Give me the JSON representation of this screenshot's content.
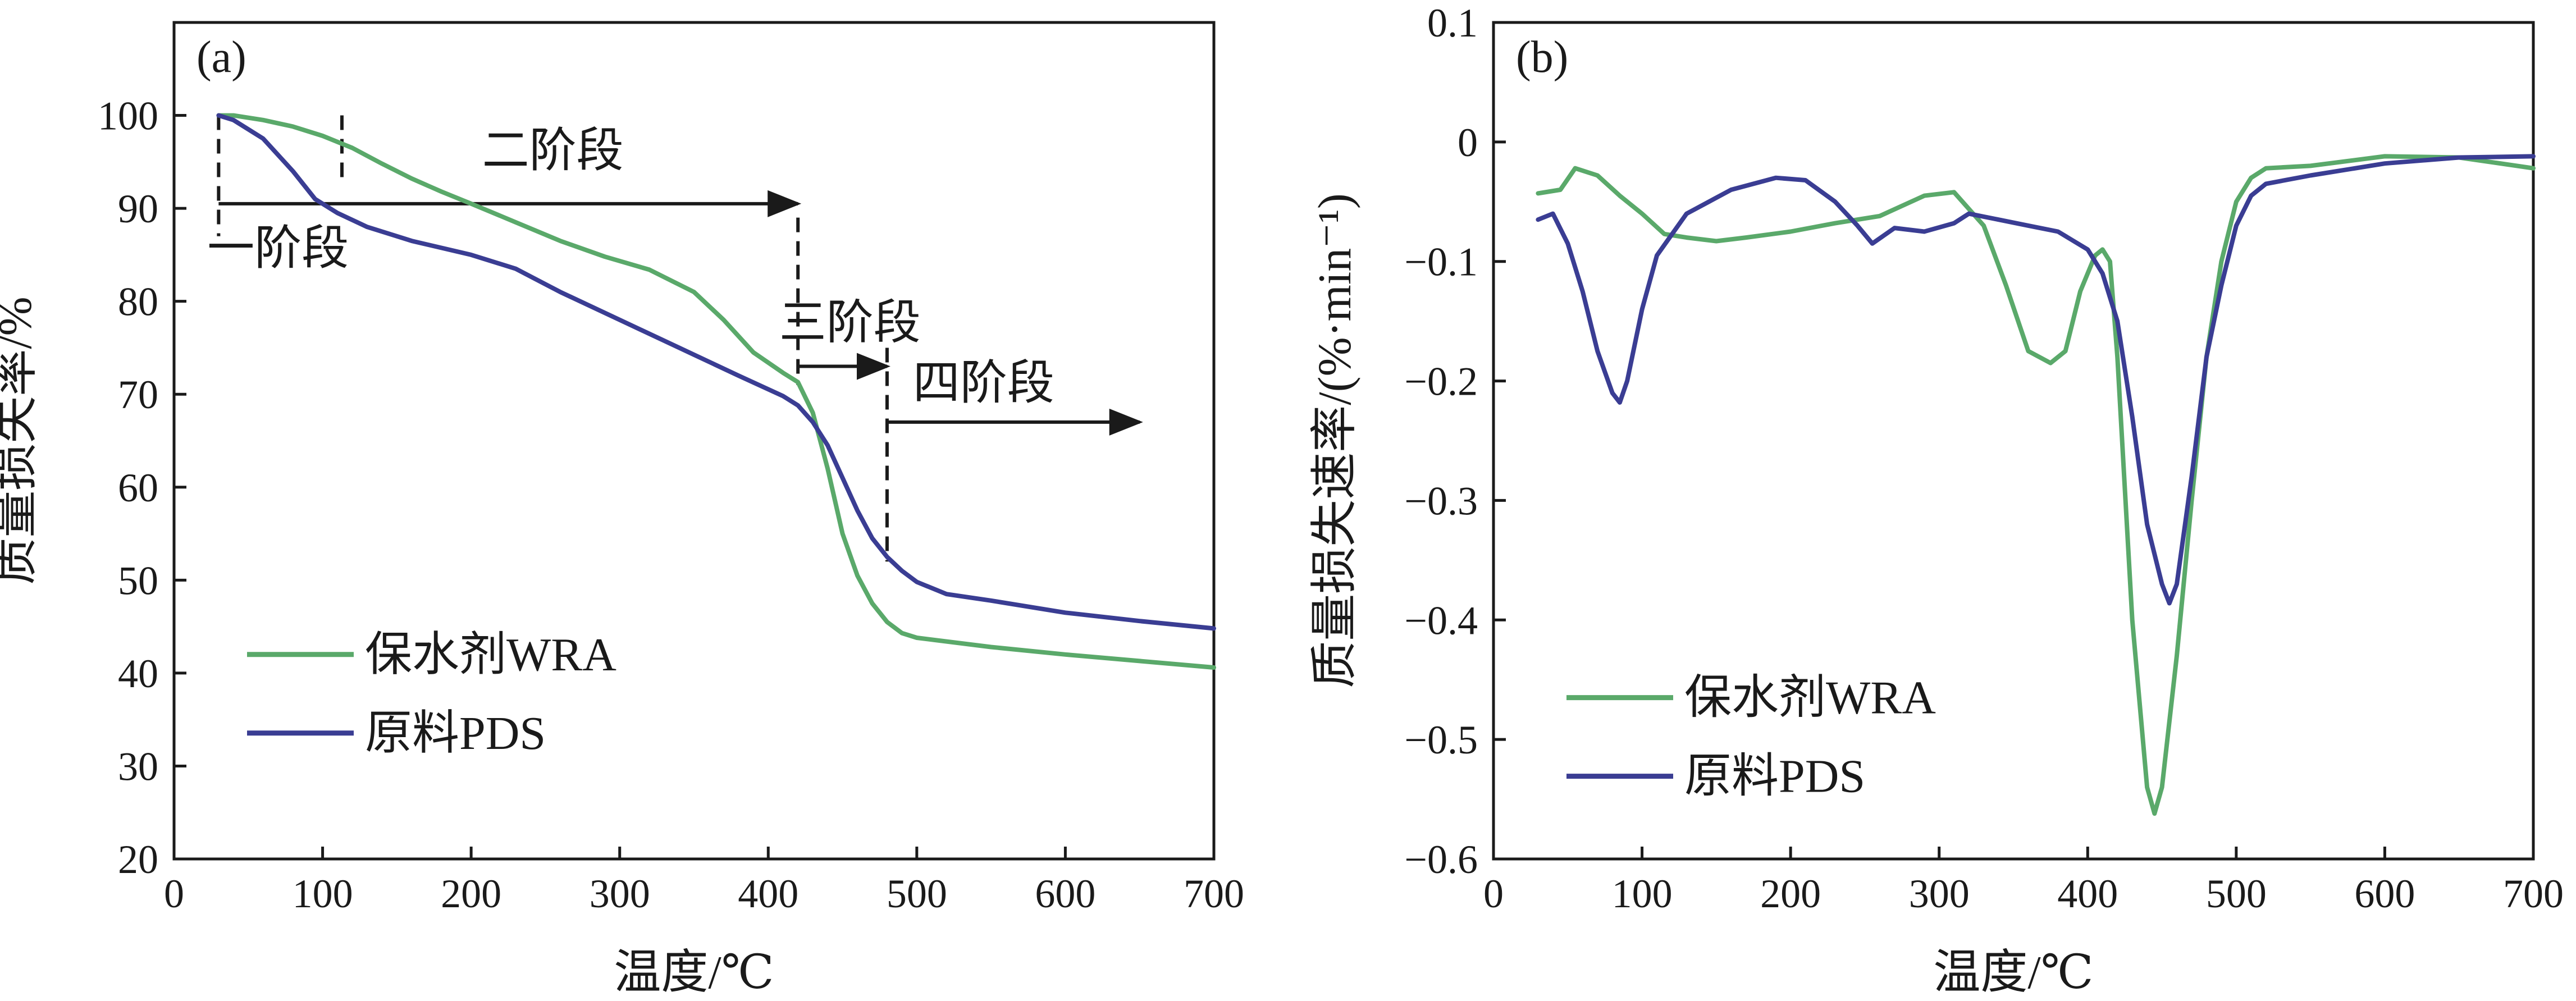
{
  "colors": {
    "wra": "#5aa96a",
    "pds": "#3a3d93",
    "axis": "#1a1a1a"
  },
  "chart_data": [
    {
      "type": "line",
      "panel": "(a)",
      "xlabel": "温度/℃",
      "ylabel": "质量损失率/%",
      "xlim": [
        0,
        700
      ],
      "ylim": [
        20,
        110
      ],
      "xticks": [
        0,
        100,
        200,
        300,
        400,
        500,
        600,
        700
      ],
      "xtick_labels": [
        "0",
        "100",
        "200",
        "300",
        "400",
        "500",
        "600",
        "700"
      ],
      "yticks": [
        20,
        30,
        40,
        50,
        60,
        70,
        80,
        90,
        100
      ],
      "ytick_labels": [
        "20",
        "30",
        "40",
        "50",
        "60",
        "70",
        "80",
        "90",
        "100"
      ],
      "legend": [
        "保水剂WRA",
        "原料PDS"
      ],
      "legend_position": "bottom-left",
      "series": [
        {
          "name": "保水剂WRA",
          "color_key": "wra",
          "x": [
            30,
            40,
            60,
            80,
            100,
            120,
            140,
            160,
            180,
            200,
            230,
            260,
            290,
            320,
            350,
            370,
            390,
            410,
            420,
            430,
            440,
            450,
            460,
            470,
            480,
            490,
            500,
            550,
            600,
            650,
            700
          ],
          "y": [
            100,
            100,
            99.5,
            98.8,
            97.8,
            96.5,
            94.8,
            93.2,
            91.8,
            90.5,
            88.5,
            86.5,
            84.8,
            83.4,
            81,
            78,
            74.5,
            72.3,
            71.3,
            68,
            62,
            55,
            50.5,
            47.5,
            45.5,
            44.3,
            43.8,
            42.8,
            42,
            41.3,
            40.6
          ]
        },
        {
          "name": "原料PDS",
          "color_key": "pds",
          "x": [
            30,
            40,
            60,
            80,
            95,
            110,
            130,
            160,
            200,
            230,
            260,
            300,
            340,
            380,
            410,
            420,
            430,
            440,
            450,
            460,
            470,
            480,
            490,
            500,
            520,
            550,
            600,
            650,
            700
          ],
          "y": [
            100,
            99.5,
            97.5,
            94,
            91,
            89.5,
            88,
            86.5,
            85,
            83.5,
            81,
            78,
            75,
            72,
            69.8,
            68.8,
            67,
            64.5,
            61,
            57.5,
            54.5,
            52.5,
            51,
            49.8,
            48.5,
            47.8,
            46.5,
            45.6,
            44.8
          ]
        }
      ],
      "stages": [
        {
          "label": "一阶段",
          "start": 30,
          "end": 113
        },
        {
          "label": "二阶段",
          "start": 113,
          "end": 420
        },
        {
          "label": "三阶段",
          "start": 420,
          "end": 480
        },
        {
          "label": "四阶段",
          "start": 480,
          "end": 650
        }
      ],
      "stage_boundaries": [
        30,
        113,
        420,
        480
      ]
    },
    {
      "type": "line",
      "panel": "(b)",
      "xlabel": "温度/℃",
      "ylabel": "质量损失速率/(%·min⁻¹)",
      "xlim": [
        0,
        700
      ],
      "ylim": [
        -0.6,
        0.1
      ],
      "xticks": [
        0,
        100,
        200,
        300,
        400,
        500,
        600,
        700
      ],
      "xtick_labels": [
        "0",
        "100",
        "200",
        "300",
        "400",
        "500",
        "600",
        "700"
      ],
      "yticks": [
        -0.6,
        -0.5,
        -0.4,
        -0.3,
        -0.2,
        -0.1,
        0,
        0.1
      ],
      "ytick_labels": [
        "−0.6",
        "−0.5",
        "−0.4",
        "−0.3",
        "−0.2",
        "−0.1",
        "0",
        "0.1"
      ],
      "legend": [
        "保水剂WRA",
        "原料PDS"
      ],
      "legend_position": "bottom-left",
      "series": [
        {
          "name": "保水剂WRA",
          "color_key": "wra",
          "x": [
            30,
            45,
            55,
            70,
            85,
            100,
            115,
            130,
            150,
            170,
            200,
            230,
            260,
            290,
            310,
            330,
            345,
            360,
            375,
            385,
            395,
            405,
            410,
            415,
            420,
            430,
            440,
            445,
            450,
            460,
            470,
            480,
            490,
            500,
            510,
            520,
            550,
            600,
            650,
            700
          ],
          "y": [
            -0.043,
            -0.04,
            -0.022,
            -0.028,
            -0.045,
            -0.06,
            -0.077,
            -0.08,
            -0.083,
            -0.08,
            -0.075,
            -0.068,
            -0.062,
            -0.045,
            -0.042,
            -0.07,
            -0.12,
            -0.175,
            -0.185,
            -0.175,
            -0.125,
            -0.095,
            -0.09,
            -0.1,
            -0.18,
            -0.4,
            -0.54,
            -0.562,
            -0.54,
            -0.43,
            -0.3,
            -0.18,
            -0.1,
            -0.05,
            -0.03,
            -0.022,
            -0.02,
            -0.012,
            -0.013,
            -0.022
          ]
        },
        {
          "name": "原料PDS",
          "color_key": "pds",
          "x": [
            30,
            40,
            50,
            60,
            70,
            80,
            85,
            90,
            100,
            110,
            130,
            160,
            190,
            210,
            230,
            245,
            255,
            270,
            290,
            310,
            320,
            340,
            360,
            380,
            400,
            410,
            420,
            430,
            440,
            450,
            455,
            460,
            470,
            480,
            490,
            500,
            510,
            520,
            550,
            600,
            650,
            700
          ],
          "y": [
            -0.065,
            -0.06,
            -0.085,
            -0.125,
            -0.175,
            -0.21,
            -0.218,
            -0.2,
            -0.14,
            -0.095,
            -0.06,
            -0.04,
            -0.03,
            -0.032,
            -0.05,
            -0.07,
            -0.085,
            -0.072,
            -0.075,
            -0.068,
            -0.06,
            -0.065,
            -0.07,
            -0.075,
            -0.09,
            -0.11,
            -0.15,
            -0.23,
            -0.32,
            -0.37,
            -0.386,
            -0.37,
            -0.28,
            -0.18,
            -0.12,
            -0.07,
            -0.045,
            -0.035,
            -0.028,
            -0.018,
            -0.013,
            -0.012
          ]
        }
      ]
    }
  ]
}
